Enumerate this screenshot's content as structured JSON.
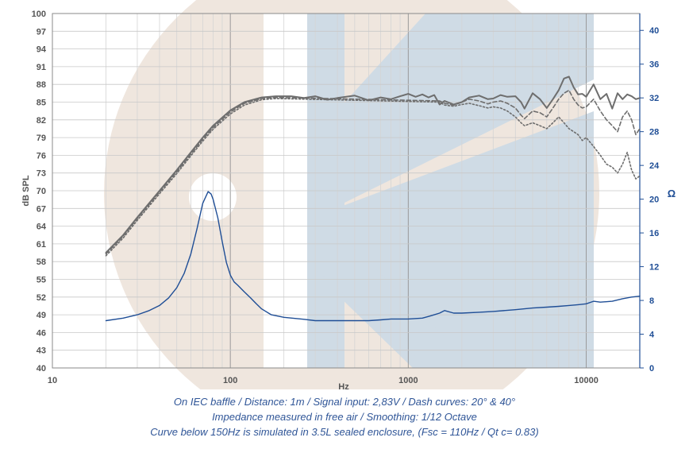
{
  "chart_data": {
    "type": "line",
    "xlabel": "Hz",
    "ylabel_left": "dB SPL",
    "ylabel_right": "Ω",
    "x_scale": "log",
    "xlim": [
      10,
      20000
    ],
    "ylim_left": [
      40,
      100
    ],
    "ylim_right": [
      0,
      42
    ],
    "x_tick_labels": [
      "10",
      "100",
      "1000",
      "10000"
    ],
    "x_tick_values": [
      10,
      100,
      1000,
      10000
    ],
    "y_left_ticks": [
      "40",
      "43",
      "46",
      "49",
      "52",
      "55",
      "58",
      "61",
      "64",
      "67",
      "70",
      "73",
      "76",
      "79",
      "82",
      "85",
      "88",
      "91",
      "94",
      "97",
      "100"
    ],
    "y_right_ticks": [
      "0",
      "4",
      "8",
      "12",
      "16",
      "20",
      "24",
      "28",
      "32",
      "36",
      "40"
    ],
    "grid": true,
    "colors": {
      "spl": "#6e6e6e",
      "impedance": "#1f4e96",
      "watermark_circle": "#efe6de",
      "watermark_band": "#cfdbe5"
    },
    "series": [
      {
        "axis": "left",
        "style": "solid",
        "color": "#6e6e6e",
        "x": [
          20,
          25,
          30,
          40,
          50,
          60,
          70,
          80,
          100,
          120,
          150,
          180,
          220,
          260,
          300,
          350,
          400,
          500,
          600,
          700,
          800,
          900,
          1000,
          1100,
          1200,
          1300,
          1400,
          1500,
          1600,
          1800,
          2000,
          2200,
          2500,
          2800,
          3000,
          3300,
          3600,
          4000,
          4300,
          4500,
          5000,
          5500,
          6000,
          6500,
          7000,
          7500,
          8000,
          8500,
          9000,
          9500,
          10000,
          11000,
          12000,
          13000,
          14000,
          15000,
          16000,
          17000,
          18000,
          19000,
          20000
        ],
        "y": [
          59.5,
          62.5,
          65.5,
          70.0,
          73.5,
          76.5,
          79.0,
          81.0,
          83.6,
          85.0,
          85.8,
          86.0,
          86.0,
          85.7,
          86.0,
          85.4,
          85.7,
          86.1,
          85.3,
          85.8,
          85.5,
          86.0,
          86.4,
          85.9,
          86.3,
          85.8,
          86.2,
          84.6,
          85.2,
          84.6,
          85.0,
          85.8,
          86.1,
          85.5,
          85.6,
          86.2,
          85.9,
          86.0,
          85.0,
          83.9,
          86.5,
          85.5,
          84.0,
          85.5,
          87.0,
          89.0,
          89.3,
          87.5,
          86.3,
          86.4,
          85.9,
          88.0,
          85.5,
          86.4,
          83.9,
          86.5,
          85.5,
          86.3,
          86.0,
          85.5,
          85.7
        ]
      },
      {
        "axis": "left",
        "style": "dashed",
        "color": "#6e6e6e",
        "x": [
          20,
          25,
          30,
          40,
          50,
          60,
          70,
          80,
          100,
          120,
          150,
          180,
          1500,
          1600,
          1800,
          2000,
          2200,
          2500,
          2800,
          3000,
          3300,
          3600,
          4000,
          4300,
          4500,
          5000,
          5500,
          6000,
          6500,
          7000,
          7500,
          8000,
          8500,
          9000,
          9500,
          10000,
          11000,
          12000,
          13000,
          14000,
          15000,
          16000,
          17000,
          18000,
          19000,
          20000
        ],
        "y": [
          59.3,
          62.3,
          65.3,
          69.8,
          73.2,
          76.2,
          78.7,
          80.7,
          83.3,
          84.8,
          85.6,
          85.8,
          85.2,
          84.8,
          84.5,
          85.0,
          85.5,
          85.2,
          84.7,
          85.0,
          85.2,
          84.8,
          84.0,
          82.8,
          82.2,
          83.5,
          83.2,
          82.5,
          84.0,
          85.5,
          86.5,
          87.0,
          85.5,
          84.5,
          84.0,
          84.2,
          85.5,
          83.5,
          82.0,
          81.0,
          80.0,
          82.5,
          83.5,
          82.0,
          79.5,
          80.5
        ]
      },
      {
        "axis": "left",
        "style": "dotted",
        "color": "#6e6e6e",
        "x": [
          20,
          25,
          30,
          40,
          50,
          60,
          70,
          80,
          100,
          120,
          150,
          180,
          1500,
          1600,
          1800,
          2000,
          2200,
          2500,
          2800,
          3000,
          3300,
          3600,
          4000,
          4300,
          4500,
          5000,
          5500,
          6000,
          6500,
          7000,
          7500,
          8000,
          8500,
          9000,
          9500,
          10000,
          11000,
          12000,
          13000,
          14000,
          15000,
          16000,
          17000,
          18000,
          19000,
          20000
        ],
        "y": [
          59.0,
          62.0,
          65.0,
          69.5,
          72.9,
          75.9,
          78.4,
          80.4,
          83.0,
          84.5,
          85.4,
          85.6,
          85.0,
          84.5,
          84.3,
          84.6,
          84.8,
          84.4,
          84.0,
          84.2,
          84.0,
          83.5,
          82.5,
          81.5,
          81.0,
          81.5,
          81.0,
          80.5,
          81.5,
          82.5,
          81.5,
          80.5,
          80.0,
          79.5,
          78.5,
          79.0,
          77.5,
          76.0,
          74.5,
          74.0,
          73.0,
          74.5,
          76.5,
          73.5,
          72.0,
          72.5
        ]
      },
      {
        "axis": "right",
        "style": "solid",
        "color": "#1f4e96",
        "x": [
          20,
          25,
          30,
          35,
          40,
          45,
          50,
          55,
          60,
          65,
          70,
          75,
          78,
          80,
          85,
          90,
          95,
          100,
          105,
          110,
          115,
          120,
          130,
          140,
          150,
          170,
          200,
          250,
          300,
          400,
          500,
          600,
          700,
          800,
          1000,
          1200,
          1300,
          1400,
          1500,
          1600,
          1800,
          2000,
          2500,
          3000,
          4000,
          5000,
          6000,
          7000,
          8000,
          9000,
          10000,
          11000,
          12000,
          14000,
          16000,
          18000,
          20000
        ],
        "y": [
          5.6,
          5.9,
          6.3,
          6.8,
          7.4,
          8.3,
          9.5,
          11.2,
          13.5,
          16.5,
          19.5,
          20.9,
          20.6,
          20.0,
          17.8,
          15.0,
          12.5,
          11.0,
          10.2,
          9.8,
          9.4,
          9.0,
          8.3,
          7.6,
          7.0,
          6.3,
          6.0,
          5.8,
          5.6,
          5.6,
          5.6,
          5.6,
          5.7,
          5.8,
          5.8,
          5.9,
          6.1,
          6.3,
          6.5,
          6.8,
          6.5,
          6.5,
          6.6,
          6.7,
          6.9,
          7.1,
          7.2,
          7.3,
          7.4,
          7.5,
          7.6,
          7.9,
          7.8,
          7.9,
          8.2,
          8.4,
          8.5
        ]
      }
    ]
  },
  "captions": [
    "On IEC baffle / Distance: 1m / Signal input: 2,83V / Dash curves: 20° & 40°",
    "Impedance measured in free air / Smoothing: 1/12 Octave",
    "Curve below 150Hz is simulated in 3.5L sealed enclosure, (Fsc = 110Hz / Qt c= 0.83)"
  ]
}
